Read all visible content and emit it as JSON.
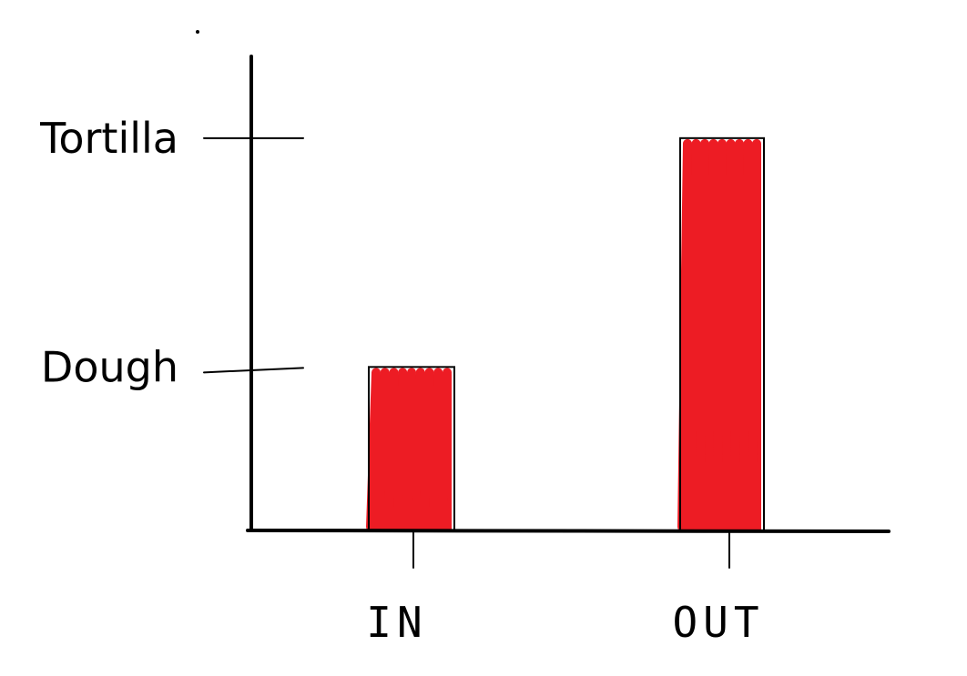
{
  "chart_data": {
    "type": "bar",
    "categories": [
      "IN",
      "OUT"
    ],
    "values": [
      1,
      2.4
    ],
    "y_ticks": [
      {
        "value": 1,
        "label": "Dough"
      },
      {
        "value": 2.4,
        "label": "Tortilla"
      }
    ],
    "title": "",
    "xlabel": "",
    "ylabel": "",
    "ylim": [
      0,
      2.9
    ],
    "grid": false,
    "legend": "none",
    "colors": {
      "bar_fill": "#ed1c24",
      "bar_outline": "#000000",
      "axis": "#000000"
    }
  }
}
